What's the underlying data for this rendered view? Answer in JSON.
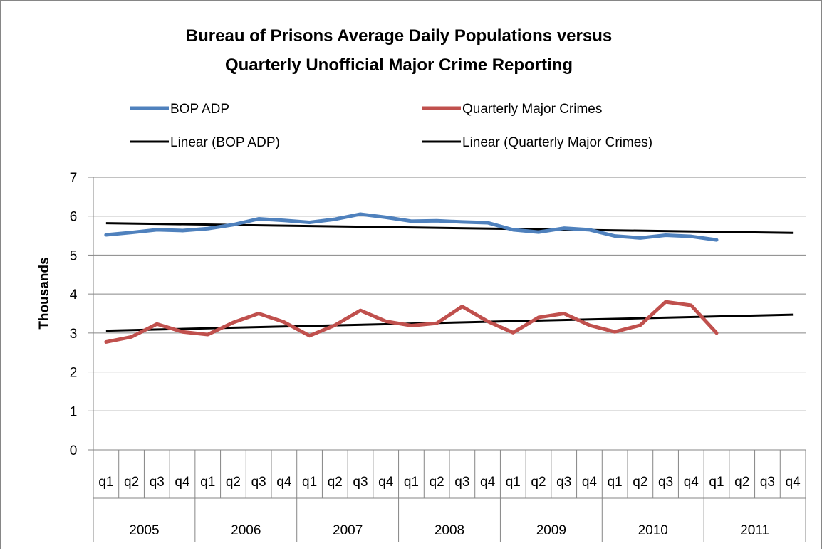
{
  "chart_data": {
    "type": "line",
    "title_lines": [
      "Bureau of Prisons Average Daily Populations versus",
      "Quarterly Unofficial Major Crime Reporting"
    ],
    "ylabel": "Thousands",
    "xlabel": "",
    "ylim": [
      0,
      7
    ],
    "y_ticks": [
      0,
      1,
      2,
      3,
      4,
      5,
      6,
      7
    ],
    "grid": true,
    "legend_position": "top",
    "categories": [
      "2005 q1",
      "2005 q2",
      "2005 q3",
      "2005 q4",
      "2006 q1",
      "2006 q2",
      "2006 q3",
      "2006 q4",
      "2007 q1",
      "2007 q2",
      "2007 q3",
      "2007 q4",
      "2008 q1",
      "2008 q2",
      "2008 q3",
      "2008 q4",
      "2009 q1",
      "2009 q2",
      "2009 q3",
      "2009 q4",
      "2010 q1",
      "2010 q2",
      "2010 q3",
      "2010 q4",
      "2011 q1",
      "2011 q2",
      "2011 q3",
      "2011 q4"
    ],
    "quarter_labels": [
      "q1",
      "q2",
      "q3",
      "q4"
    ],
    "years": [
      "2005",
      "2006",
      "2007",
      "2008",
      "2009",
      "2010",
      "2011"
    ],
    "series": [
      {
        "name": "BOP ADP",
        "color": "#4f81bd",
        "values": [
          5.52,
          5.58,
          5.65,
          5.63,
          5.68,
          5.78,
          5.93,
          5.89,
          5.84,
          5.92,
          6.05,
          5.97,
          5.87,
          5.88,
          5.85,
          5.83,
          5.65,
          5.59,
          5.69,
          5.65,
          5.49,
          5.44,
          5.51,
          5.48,
          5.39,
          null,
          null,
          null
        ]
      },
      {
        "name": "Quarterly Major Crimes",
        "color": "#c0504d",
        "values": [
          2.77,
          2.9,
          3.23,
          3.03,
          2.96,
          3.27,
          3.5,
          3.28,
          2.93,
          3.2,
          3.58,
          3.3,
          3.19,
          3.25,
          3.68,
          3.3,
          3.01,
          3.4,
          3.5,
          3.2,
          3.03,
          3.2,
          3.8,
          3.71,
          3.0,
          null,
          null,
          null
        ]
      }
    ],
    "trendlines": [
      {
        "name": "Linear (BOP ADP)",
        "color": "#000000",
        "start": 5.82,
        "end": 5.57
      },
      {
        "name": "Linear (Quarterly Major Crimes)",
        "color": "#000000",
        "start": 3.06,
        "end": 3.47
      }
    ]
  }
}
